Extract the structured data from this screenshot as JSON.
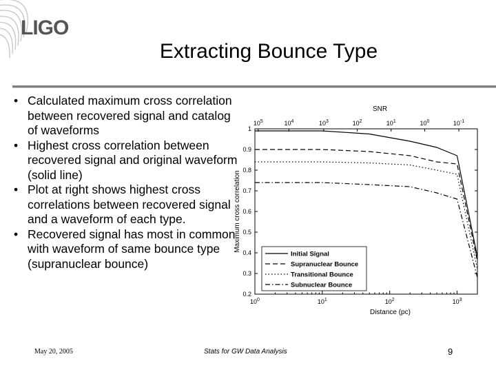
{
  "header": {
    "logo_text": "LIGO",
    "title": "Extracting Bounce Type"
  },
  "bullets": [
    "Calculated maximum cross correlation between recovered signal and catalog of waveforms",
    "Highest cross correlation between recovered signal and original waveform (solid line)",
    "Plot at right shows highest cross correlations between recovered signal and a waveform of each type.",
    "Recovered signal has most in common with waveform of same bounce type (supranuclear bounce)"
  ],
  "bullet_glyph": "•",
  "footer": {
    "date": "May 20, 2005",
    "center": "Stats for GW Data Analysis",
    "page": "9"
  },
  "chart_data": {
    "type": "line",
    "title": "",
    "xlabel": "Distance (pc)",
    "ylabel": "Maximum cross correlation",
    "top_axis_label": "SNR",
    "x_scale": "log",
    "xlim": [
      1,
      2000
    ],
    "ylim": [
      0.2,
      1.0
    ],
    "x_ticks": [
      1,
      10,
      100,
      1000
    ],
    "x_tick_labels": [
      {
        "base": "10",
        "exp": "0"
      },
      {
        "base": "10",
        "exp": "1"
      },
      {
        "base": "10",
        "exp": "2"
      },
      {
        "base": "10",
        "exp": "3"
      }
    ],
    "y_ticks": [
      0.2,
      0.3,
      0.4,
      0.5,
      0.6,
      0.7,
      0.8,
      0.9,
      1.0
    ],
    "y_tick_labels": [
      "0.2",
      "0.3",
      "0.4",
      "0.5",
      "0.6",
      "0.7",
      "0.8",
      "0.9",
      "1"
    ],
    "top_ticks": [
      {
        "x": 1.12,
        "base": "10",
        "exp": "5"
      },
      {
        "x": 3.2,
        "base": "10",
        "exp": "4"
      },
      {
        "x": 10.5,
        "base": "10",
        "exp": "3"
      },
      {
        "x": 33,
        "base": "10",
        "exp": "2"
      },
      {
        "x": 105,
        "base": "10",
        "exp": "1"
      },
      {
        "x": 330,
        "base": "10",
        "exp": "0"
      },
      {
        "x": 1060,
        "base": "10",
        "exp": "-1"
      }
    ],
    "grid": false,
    "legend_position": "bottom-left",
    "series": [
      {
        "name": "Initial Signal",
        "style": "solid",
        "x": [
          1,
          10,
          50,
          200,
          500,
          1000,
          2000
        ],
        "y": [
          0.99,
          0.99,
          0.975,
          0.94,
          0.91,
          0.87,
          0.38
        ]
      },
      {
        "name": "Supranuclear Bounce",
        "style": "dashed",
        "x": [
          1,
          10,
          50,
          200,
          500,
          1000,
          2000
        ],
        "y": [
          0.9,
          0.9,
          0.89,
          0.87,
          0.84,
          0.83,
          0.36
        ]
      },
      {
        "name": "Transitional Bounce",
        "style": "dotted",
        "x": [
          1,
          10,
          50,
          200,
          500,
          1000,
          2000
        ],
        "y": [
          0.84,
          0.84,
          0.835,
          0.825,
          0.8,
          0.78,
          0.32
        ]
      },
      {
        "name": "Subnuclear Bounce",
        "style": "dashdot",
        "x": [
          1,
          10,
          50,
          200,
          500,
          1000,
          2000
        ],
        "y": [
          0.74,
          0.74,
          0.73,
          0.72,
          0.69,
          0.66,
          0.28
        ]
      }
    ]
  }
}
